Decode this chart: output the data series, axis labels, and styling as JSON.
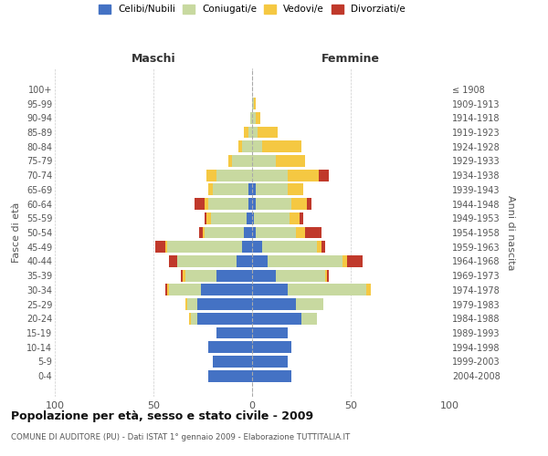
{
  "age_groups": [
    "0-4",
    "5-9",
    "10-14",
    "15-19",
    "20-24",
    "25-29",
    "30-34",
    "35-39",
    "40-44",
    "45-49",
    "50-54",
    "55-59",
    "60-64",
    "65-69",
    "70-74",
    "75-79",
    "80-84",
    "85-89",
    "90-94",
    "95-99",
    "100+"
  ],
  "birth_years": [
    "2004-2008",
    "1999-2003",
    "1994-1998",
    "1989-1993",
    "1984-1988",
    "1979-1983",
    "1974-1978",
    "1969-1973",
    "1964-1968",
    "1959-1963",
    "1954-1958",
    "1949-1953",
    "1944-1948",
    "1939-1943",
    "1934-1938",
    "1929-1933",
    "1924-1928",
    "1919-1923",
    "1914-1918",
    "1909-1913",
    "≤ 1908"
  ],
  "males": {
    "celibi": [
      22,
      20,
      22,
      18,
      28,
      28,
      26,
      18,
      8,
      5,
      4,
      3,
      2,
      2,
      0,
      0,
      0,
      0,
      0,
      0,
      0
    ],
    "coniugati": [
      0,
      0,
      0,
      0,
      3,
      5,
      16,
      16,
      30,
      38,
      20,
      18,
      20,
      18,
      18,
      10,
      5,
      2,
      1,
      0,
      0
    ],
    "vedovi": [
      0,
      0,
      0,
      0,
      1,
      1,
      1,
      1,
      0,
      1,
      1,
      2,
      2,
      2,
      5,
      2,
      2,
      2,
      0,
      0,
      0
    ],
    "divorziati": [
      0,
      0,
      0,
      0,
      0,
      0,
      1,
      1,
      4,
      5,
      2,
      1,
      5,
      0,
      0,
      0,
      0,
      0,
      0,
      0,
      0
    ]
  },
  "females": {
    "nubili": [
      20,
      18,
      20,
      18,
      25,
      22,
      18,
      12,
      8,
      5,
      2,
      1,
      2,
      2,
      0,
      0,
      0,
      0,
      0,
      0,
      0
    ],
    "coniugate": [
      0,
      0,
      0,
      0,
      8,
      14,
      40,
      25,
      38,
      28,
      20,
      18,
      18,
      16,
      18,
      12,
      5,
      3,
      2,
      1,
      0
    ],
    "vedove": [
      0,
      0,
      0,
      0,
      0,
      0,
      2,
      1,
      2,
      2,
      5,
      5,
      8,
      8,
      16,
      15,
      20,
      10,
      2,
      1,
      0
    ],
    "divorziate": [
      0,
      0,
      0,
      0,
      0,
      0,
      0,
      1,
      8,
      2,
      8,
      2,
      2,
      0,
      5,
      0,
      0,
      0,
      0,
      0,
      0
    ]
  },
  "colors": {
    "celibi": "#4472c4",
    "coniugati": "#c8d9a0",
    "vedovi": "#f5c842",
    "divorziati": "#c0392b"
  },
  "xlim": [
    -100,
    100
  ],
  "xticks": [
    -100,
    -50,
    0,
    50,
    100
  ],
  "xticklabels": [
    "100",
    "50",
    "0",
    "50",
    "100"
  ],
  "title": "Popolazione per età, sesso e stato civile - 2009",
  "subtitle": "COMUNE DI AUDITORE (PU) - Dati ISTAT 1° gennaio 2009 - Elaborazione TUTTITALIA.IT",
  "ylabel_left": "Fasce di età",
  "ylabel_right": "Anni di nascita",
  "header_left": "Maschi",
  "header_right": "Femmine",
  "legend_labels": [
    "Celibi/Nubili",
    "Coniugati/e",
    "Vedovi/e",
    "Divorziati/e"
  ],
  "bg_color": "#ffffff",
  "grid_color": "#cccccc"
}
